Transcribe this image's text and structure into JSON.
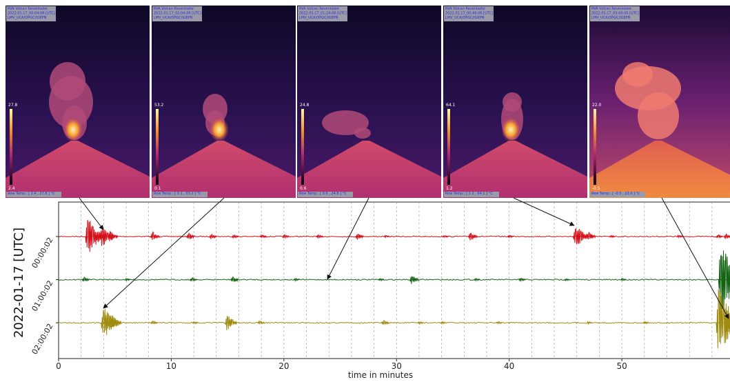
{
  "images": [
    {
      "title": "RVA Volcan Reventador",
      "timestamp": "2022.01.17_00:04:06 [UTC]",
      "source": "LMV_UCA/OPGC/IGEPN",
      "scale_max": "27.8",
      "scale_min": "2.4",
      "row_temp": "Row Temp.: [ 2.4 , 27.8 ] °C"
    },
    {
      "title": "RVA Volcan Reventador",
      "timestamp": "2022.01.17_02:04:06 [UTC]",
      "source": "LMV_UCA/OPGC/IGEPN",
      "scale_max": "53.2",
      "scale_min": "0.1",
      "row_temp": "Row Temp.: [ 0.1 , 53.2 ] °C"
    },
    {
      "title": "RVA Volcan Reventador",
      "timestamp": "2022.01.17_01:24:06 [UTC]",
      "source": "LMV_UCA/OPGC/IGEPN",
      "scale_max": "24.8",
      "scale_min": "0.6",
      "row_temp": "Row Temp.: [ 0.6 , 24.8 ] °C"
    },
    {
      "title": "RVA Volcan Reventador",
      "timestamp": "2022.01.17_00:46:06 [UTC]",
      "source": "LMV_UCA/OPGC/IGEPN",
      "scale_max": "64.1",
      "scale_min": "1.2",
      "row_temp": "Row Temp.: [ 1.2 , 64.1 ] °C"
    },
    {
      "title": "RVA Volcan Reventador",
      "timestamp": "2022.01.17_03:00:05 [UTC]",
      "source": "LMV_UCA/OPGC/IGEPN",
      "scale_max": "22.0",
      "scale_min": "-0.5",
      "row_temp": "Row Temp.: [ -0.5 , 22.0 ] °C"
    }
  ],
  "chart_data": {
    "type": "seismogram",
    "xlabel": "time in minutes",
    "ylabel": "2022-01-17 [UTC]",
    "xlim": [
      0,
      59.6
    ],
    "xticks": [
      0,
      10,
      20,
      30,
      40,
      50
    ],
    "xgrid": [
      2,
      4,
      6,
      8,
      10,
      12,
      14,
      16,
      18,
      20,
      22,
      24,
      26,
      28,
      30,
      32,
      34,
      36,
      38,
      40,
      42,
      44,
      46,
      48,
      50,
      52,
      54,
      56,
      58
    ],
    "ylim": [
      -0.8,
      2.83
    ],
    "y_inverted": true,
    "yticks": [
      {
        "value": 0,
        "label": "00:00:02"
      },
      {
        "value": 1,
        "label": "01:00:02"
      },
      {
        "value": 2,
        "label": "02:00:02"
      }
    ],
    "series": [
      {
        "color": "#d4141c",
        "baseline": 0,
        "burst_minutes": [
          2.5,
          3.8,
          4.5,
          8.3,
          11.5,
          13.5,
          15.5,
          18,
          20,
          23,
          26.5,
          29,
          34.2,
          36.5,
          40,
          45.8,
          47,
          49,
          55,
          58.5,
          59.2
        ],
        "burst_amplitudes": [
          1.0,
          0.6,
          0.4,
          0.3,
          0.25,
          0.2,
          0.15,
          0.15,
          0.15,
          0.15,
          0.25,
          0.1,
          0.1,
          0.3,
          0.1,
          0.7,
          0.3,
          0.1,
          0.12,
          0.15,
          0.2
        ]
      },
      {
        "color": "#146414",
        "baseline": 1,
        "burst_minutes": [
          2.2,
          6,
          11.8,
          15.4,
          21,
          28.5,
          31.3,
          37,
          41,
          45,
          50,
          58.7
        ],
        "burst_amplitudes": [
          0.2,
          0.1,
          0.15,
          0.25,
          0.1,
          0.1,
          0.3,
          0.1,
          0.15,
          0.1,
          0.1,
          1.65
        ]
      },
      {
        "color": "#a08c10",
        "baseline": 2,
        "burst_minutes": [
          3.9,
          4.5,
          8.3,
          12,
          14.9,
          17.8,
          28.8,
          32,
          34,
          39,
          47,
          52,
          58.5,
          59.2
        ],
        "burst_amplitudes": [
          0.9,
          0.6,
          0.15,
          0.1,
          0.5,
          0.15,
          0.2,
          0.1,
          0.1,
          0.1,
          0.1,
          0.1,
          1.6,
          0.7
        ]
      }
    ]
  }
}
